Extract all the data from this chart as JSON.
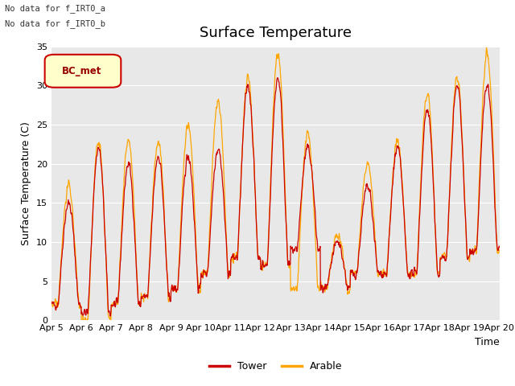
{
  "title": "Surface Temperature",
  "ylabel": "Surface Temperature (C)",
  "xlabel": "Time",
  "ylim": [
    0,
    35
  ],
  "yticks": [
    0,
    5,
    10,
    15,
    20,
    25,
    30,
    35
  ],
  "x_labels": [
    "Apr 5",
    "Apr 6",
    "Apr 7",
    "Apr 8",
    "Apr 9",
    "Apr 10",
    "Apr 11",
    "Apr 12",
    "Apr 13",
    "Apr 14",
    "Apr 15",
    "Apr 16",
    "Apr 17",
    "Apr 18",
    "Apr 19",
    "Apr 20"
  ],
  "tower_color": "#cc0000",
  "arable_color": "#ffa500",
  "plot_bg": "#e8e8e8",
  "annotation1": "No data for f_IRT0_a",
  "annotation2": "No data for f̲IRT0̲b",
  "bc_met_label": "BC_met",
  "legend_tower": "Tower",
  "legend_arable": "Arable",
  "title_fontsize": 13,
  "label_fontsize": 9,
  "tick_fontsize": 8,
  "day_peaks_tower": [
    15,
    22,
    20,
    21,
    21,
    22,
    30,
    31,
    22,
    10,
    17,
    22,
    27,
    30,
    30
  ],
  "day_peaks_arable": [
    17,
    23,
    23,
    23,
    25,
    28,
    31,
    34,
    24,
    11,
    20,
    23,
    29,
    31,
    34
  ],
  "night_mins_tower": [
    2,
    1,
    2,
    3,
    4,
    6,
    8,
    7,
    9,
    4,
    6,
    6,
    6,
    8,
    9
  ],
  "night_mins_arable": [
    2,
    0,
    2,
    3,
    4,
    6,
    8,
    7,
    4,
    4,
    6,
    6,
    6,
    8,
    9
  ]
}
